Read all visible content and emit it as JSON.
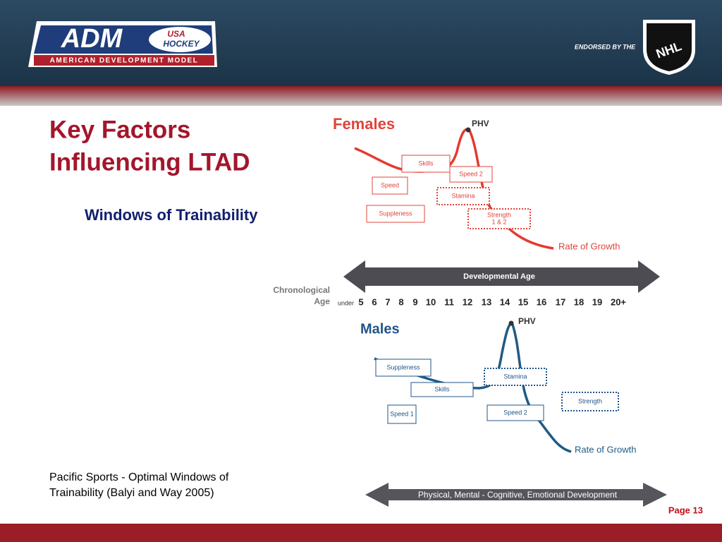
{
  "header": {
    "logo": "ADM",
    "logo_badge": [
      "USA",
      "HOCKEY"
    ],
    "logo_subtitle": "AMERICAN DEVELOPMENT MODEL",
    "endorsement": "ENDORSED BY THE",
    "nhl": "NHL"
  },
  "title": [
    "Key Factors",
    "Influencing LTAD"
  ],
  "subtitle": "Windows of Trainability",
  "caption": [
    "Pacific Sports - Optimal Windows of",
    "Trainability (Balyi and Way 2005)"
  ],
  "page": "Page 13",
  "diagram": {
    "females": {
      "label": "Females",
      "peak": "PHV",
      "boxes": [
        "Skills",
        "Speed 2",
        "Speed",
        "Stamina",
        "Suppleness",
        [
          "Strength",
          "1 & 2"
        ]
      ],
      "curve": "Rate of Growth"
    },
    "developmental_age": "Developmental Age",
    "chronological_age": [
      "Chronological",
      "Age"
    ],
    "under": "under",
    "ages": [
      "5",
      "6",
      "7",
      "8",
      "9",
      "10",
      "11",
      "12",
      "13",
      "14",
      "15",
      "16",
      "17",
      "18",
      "19",
      "20+"
    ],
    "males": {
      "label": "Males",
      "peak": "PHV",
      "boxes": [
        "Suppleness",
        "Stamina",
        "Skills",
        "Strength",
        "Speed 1",
        "Speed 2"
      ],
      "curve": "Rate of Growth"
    },
    "development": "Physical, Mental - Cognitive, Emotional Development"
  }
}
